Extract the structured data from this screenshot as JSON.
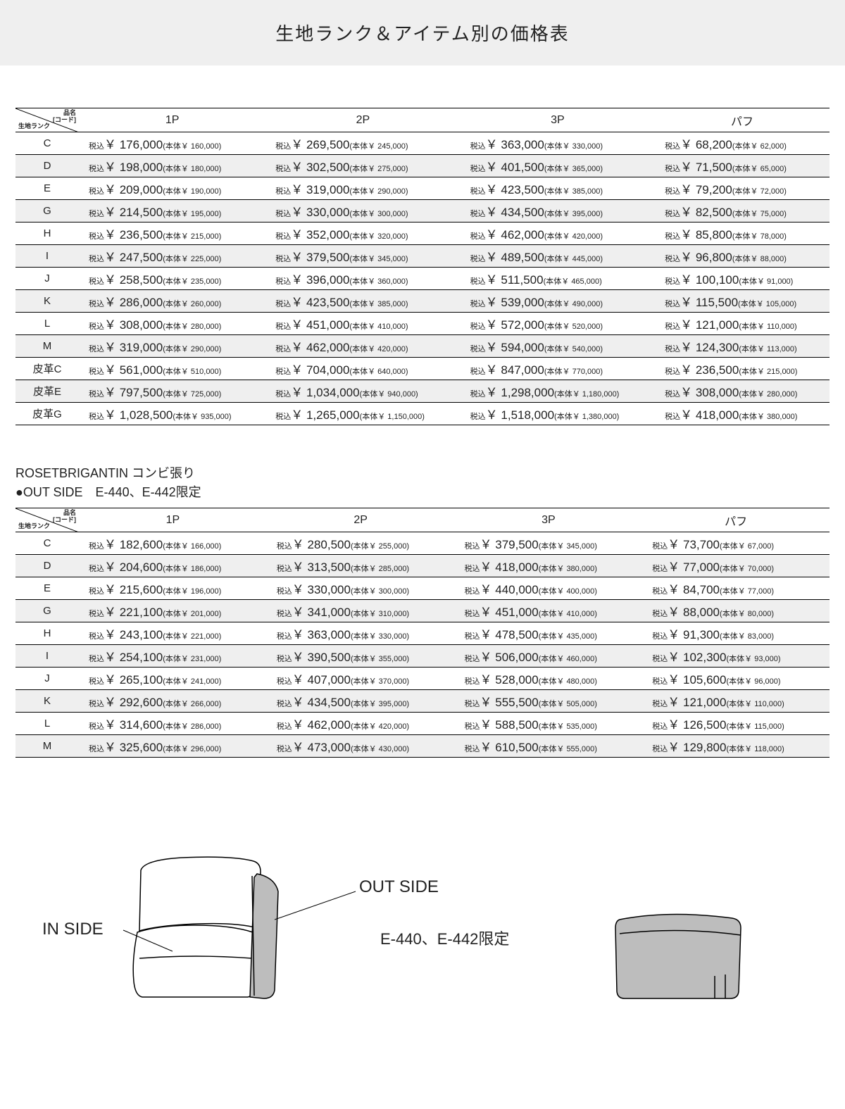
{
  "title": "生地ランク＆アイテム別の価格表",
  "diag_top": "品名\n[コード]",
  "diag_bot": "生地ランク",
  "columns": [
    "1P",
    "2P",
    "3P",
    "パフ"
  ],
  "zk": "税込",
  "yen": "￥",
  "base_pre": "(本体￥",
  "base_post": ")",
  "t1": [
    {
      "rank": "C",
      "cells": [
        {
          "m": "176,000",
          "b": "160,000"
        },
        {
          "m": "269,500",
          "b": "245,000"
        },
        {
          "m": "363,000",
          "b": "330,000"
        },
        {
          "m": "68,200",
          "b": "62,000"
        }
      ]
    },
    {
      "rank": "D",
      "shade": true,
      "cells": [
        {
          "m": "198,000",
          "b": "180,000"
        },
        {
          "m": "302,500",
          "b": "275,000"
        },
        {
          "m": "401,500",
          "b": "365,000"
        },
        {
          "m": "71,500",
          "b": "65,000"
        }
      ]
    },
    {
      "rank": "E",
      "cells": [
        {
          "m": "209,000",
          "b": "190,000"
        },
        {
          "m": "319,000",
          "b": "290,000"
        },
        {
          "m": "423,500",
          "b": "385,000"
        },
        {
          "m": "79,200",
          "b": "72,000"
        }
      ]
    },
    {
      "rank": "G",
      "shade": true,
      "cells": [
        {
          "m": "214,500",
          "b": "195,000"
        },
        {
          "m": "330,000",
          "b": "300,000"
        },
        {
          "m": "434,500",
          "b": "395,000"
        },
        {
          "m": "82,500",
          "b": "75,000"
        }
      ]
    },
    {
      "rank": "H",
      "cells": [
        {
          "m": "236,500",
          "b": "215,000"
        },
        {
          "m": "352,000",
          "b": "320,000"
        },
        {
          "m": "462,000",
          "b": "420,000"
        },
        {
          "m": "85,800",
          "b": "78,000"
        }
      ]
    },
    {
      "rank": "I",
      "shade": true,
      "cells": [
        {
          "m": "247,500",
          "b": "225,000"
        },
        {
          "m": "379,500",
          "b": "345,000"
        },
        {
          "m": "489,500",
          "b": "445,000"
        },
        {
          "m": "96,800",
          "b": "88,000"
        }
      ]
    },
    {
      "rank": "J",
      "cells": [
        {
          "m": "258,500",
          "b": "235,000"
        },
        {
          "m": "396,000",
          "b": "360,000"
        },
        {
          "m": "511,500",
          "b": "465,000"
        },
        {
          "m": "100,100",
          "b": "91,000"
        }
      ]
    },
    {
      "rank": "K",
      "shade": true,
      "cells": [
        {
          "m": "286,000",
          "b": "260,000"
        },
        {
          "m": "423,500",
          "b": "385,000"
        },
        {
          "m": "539,000",
          "b": "490,000"
        },
        {
          "m": "115,500",
          "b": "105,000"
        }
      ]
    },
    {
      "rank": "L",
      "cells": [
        {
          "m": "308,000",
          "b": "280,000"
        },
        {
          "m": "451,000",
          "b": "410,000"
        },
        {
          "m": "572,000",
          "b": "520,000"
        },
        {
          "m": "121,000",
          "b": "110,000"
        }
      ]
    },
    {
      "rank": "M",
      "shade": true,
      "cells": [
        {
          "m": "319,000",
          "b": "290,000"
        },
        {
          "m": "462,000",
          "b": "420,000"
        },
        {
          "m": "594,000",
          "b": "540,000"
        },
        {
          "m": "124,300",
          "b": "113,000"
        }
      ]
    },
    {
      "rank": "皮革C",
      "cells": [
        {
          "m": "561,000",
          "b": "510,000"
        },
        {
          "m": "704,000",
          "b": "640,000"
        },
        {
          "m": "847,000",
          "b": "770,000"
        },
        {
          "m": "236,500",
          "b": "215,000"
        }
      ]
    },
    {
      "rank": "皮革E",
      "shade": true,
      "cells": [
        {
          "m": "797,500",
          "b": "725,000"
        },
        {
          "m": "1,034,000",
          "b": "940,000"
        },
        {
          "m": "1,298,000",
          "b": "1,180,000"
        },
        {
          "m": "308,000",
          "b": "280,000"
        }
      ]
    },
    {
      "rank": "皮革G",
      "cells": [
        {
          "m": "1,028,500",
          "b": "935,000"
        },
        {
          "m": "1,265,000",
          "b": "1,150,000"
        },
        {
          "m": "1,518,000",
          "b": "1,380,000"
        },
        {
          "m": "418,000",
          "b": "380,000"
        }
      ]
    }
  ],
  "sub1": "ROSETBRIGANTIN コンビ張り",
  "sub2": "●OUT SIDE　E-440、E-442限定",
  "t2": [
    {
      "rank": "C",
      "cells": [
        {
          "m": "182,600",
          "b": "166,000"
        },
        {
          "m": "280,500",
          "b": "255,000"
        },
        {
          "m": "379,500",
          "b": "345,000"
        },
        {
          "m": "73,700",
          "b": "67,000"
        }
      ]
    },
    {
      "rank": "D",
      "shade": true,
      "cells": [
        {
          "m": "204,600",
          "b": "186,000"
        },
        {
          "m": "313,500",
          "b": "285,000"
        },
        {
          "m": "418,000",
          "b": "380,000"
        },
        {
          "m": "77,000",
          "b": "70,000"
        }
      ]
    },
    {
      "rank": "E",
      "cells": [
        {
          "m": "215,600",
          "b": "196,000"
        },
        {
          "m": "330,000",
          "b": "300,000"
        },
        {
          "m": "440,000",
          "b": "400,000"
        },
        {
          "m": "84,700",
          "b": "77,000"
        }
      ]
    },
    {
      "rank": "G",
      "shade": true,
      "cells": [
        {
          "m": "221,100",
          "b": "201,000"
        },
        {
          "m": "341,000",
          "b": "310,000"
        },
        {
          "m": "451,000",
          "b": "410,000"
        },
        {
          "m": "88,000",
          "b": "80,000"
        }
      ]
    },
    {
      "rank": "H",
      "cells": [
        {
          "m": "243,100",
          "b": "221,000"
        },
        {
          "m": "363,000",
          "b": "330,000"
        },
        {
          "m": "478,500",
          "b": "435,000"
        },
        {
          "m": "91,300",
          "b": "83,000"
        }
      ]
    },
    {
      "rank": "I",
      "shade": true,
      "cells": [
        {
          "m": "254,100",
          "b": "231,000"
        },
        {
          "m": "390,500",
          "b": "355,000"
        },
        {
          "m": "506,000",
          "b": "460,000"
        },
        {
          "m": "102,300",
          "b": "93,000"
        }
      ]
    },
    {
      "rank": "J",
      "cells": [
        {
          "m": "265,100",
          "b": "241,000"
        },
        {
          "m": "407,000",
          "b": "370,000"
        },
        {
          "m": "528,000",
          "b": "480,000"
        },
        {
          "m": "105,600",
          "b": "96,000"
        }
      ]
    },
    {
      "rank": "K",
      "shade": true,
      "cells": [
        {
          "m": "292,600",
          "b": "266,000"
        },
        {
          "m": "434,500",
          "b": "395,000"
        },
        {
          "m": "555,500",
          "b": "505,000"
        },
        {
          "m": "121,000",
          "b": "110,000"
        }
      ]
    },
    {
      "rank": "L",
      "cells": [
        {
          "m": "314,600",
          "b": "286,000"
        },
        {
          "m": "462,000",
          "b": "420,000"
        },
        {
          "m": "588,500",
          "b": "535,000"
        },
        {
          "m": "126,500",
          "b": "115,000"
        }
      ]
    },
    {
      "rank": "M",
      "shade": true,
      "cells": [
        {
          "m": "325,600",
          "b": "296,000"
        },
        {
          "m": "473,000",
          "b": "430,000"
        },
        {
          "m": "610,500",
          "b": "555,000"
        },
        {
          "m": "129,800",
          "b": "118,000"
        }
      ]
    }
  ],
  "il_in": "IN SIDE",
  "il_out": "OUT SIDE",
  "il_note": "E-440、E-442限定"
}
